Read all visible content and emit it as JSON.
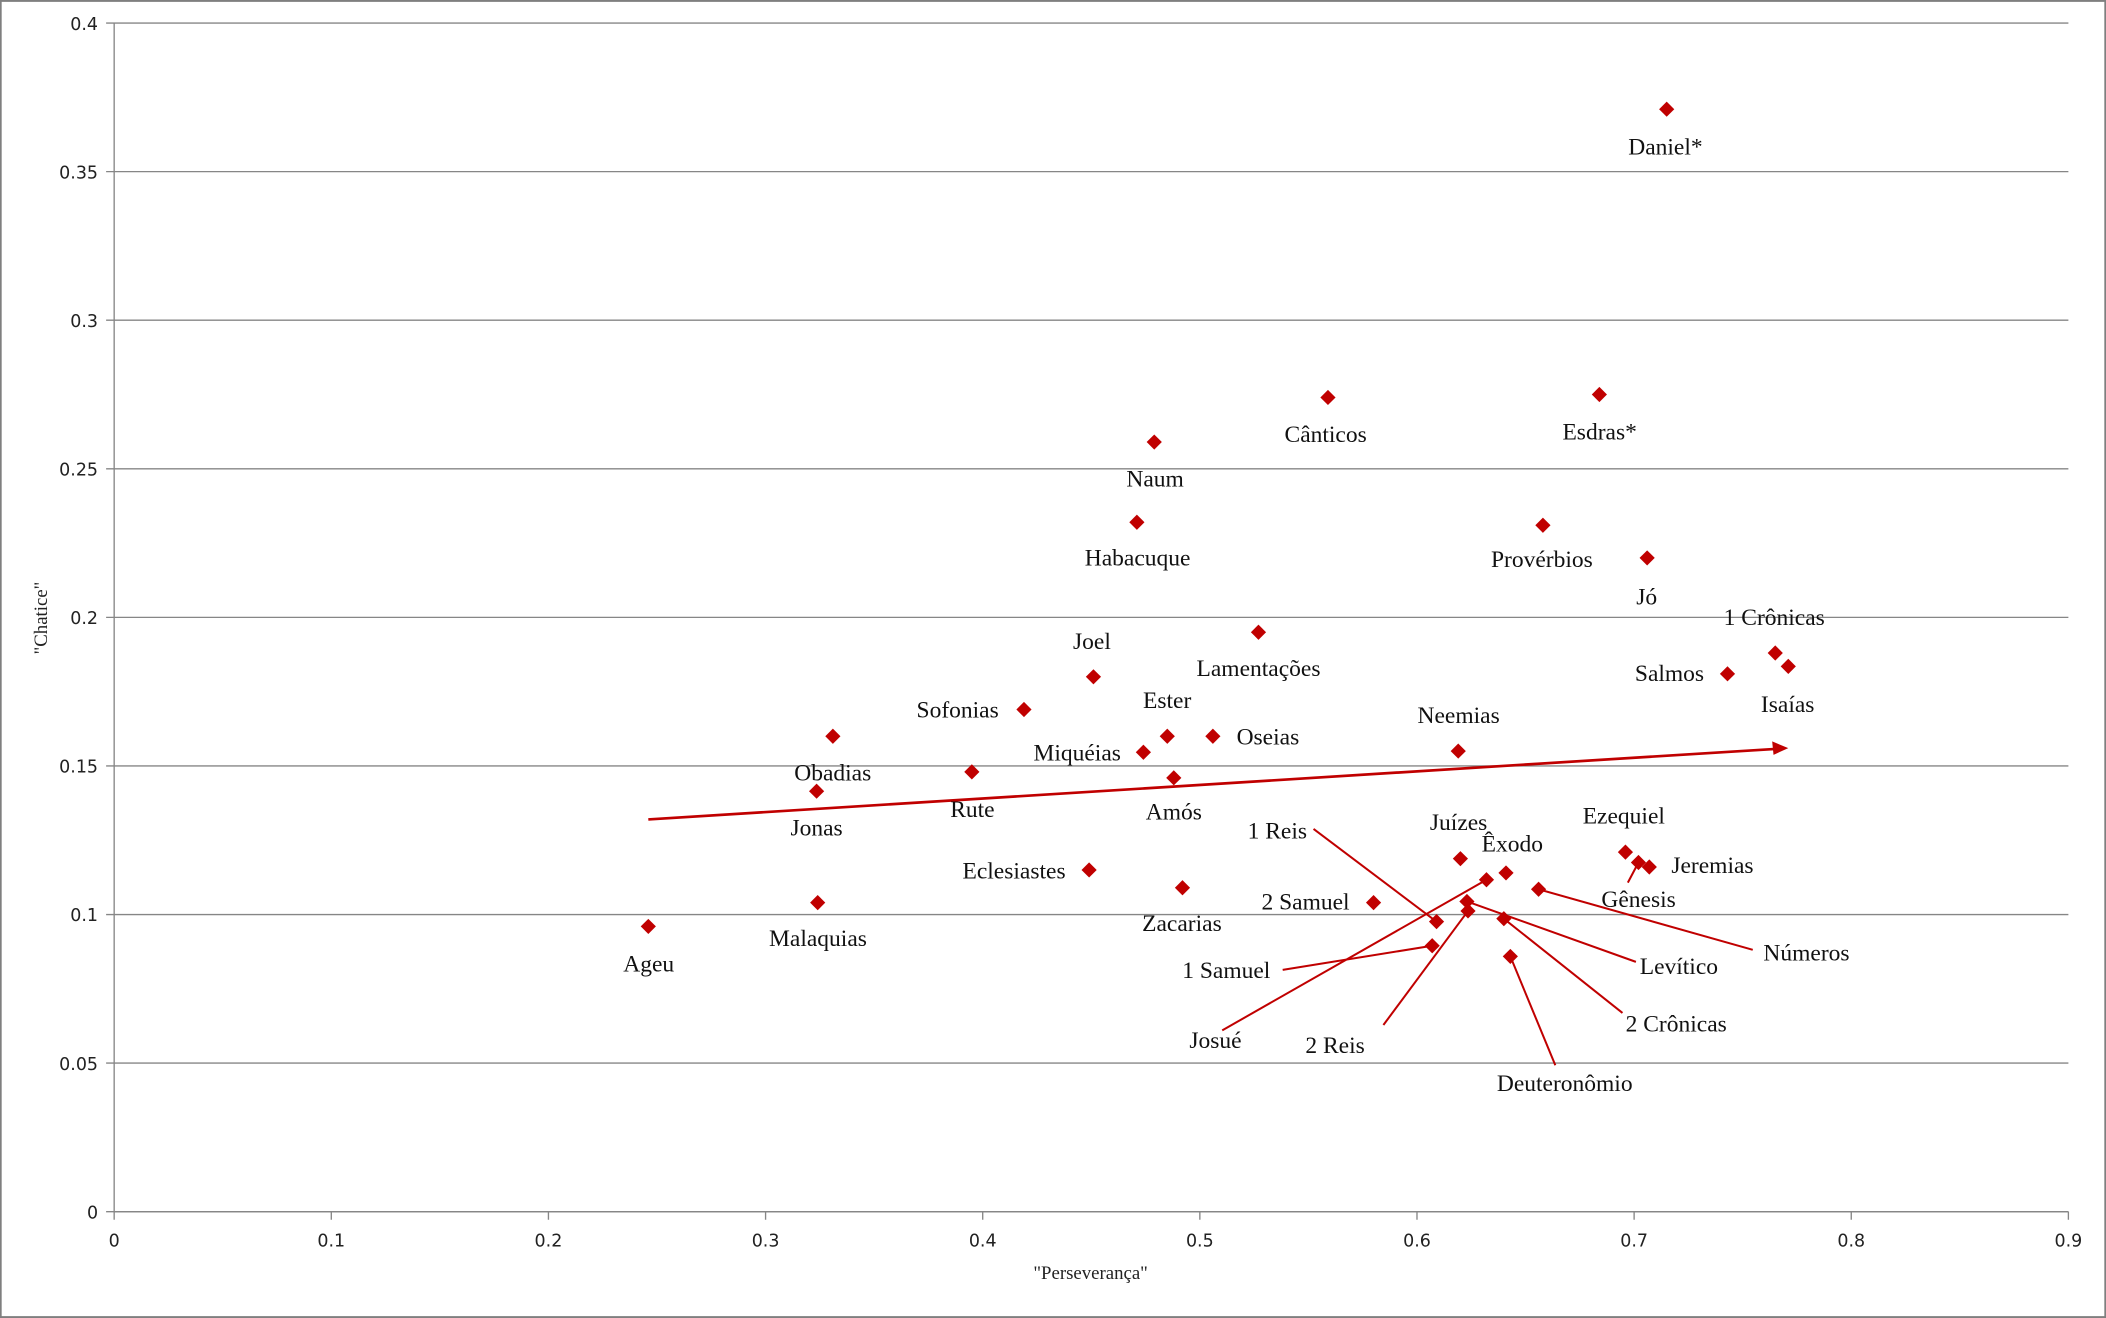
{
  "colors": {
    "marker": "#C00000",
    "grid": "#868686",
    "border": "#7f7f7f"
  },
  "chart_data": {
    "type": "scatter",
    "title": "",
    "xlabel": "\"Perseverança\"",
    "ylabel": "\"Chatice\"",
    "xlim": [
      0,
      0.9
    ],
    "ylim": [
      0,
      0.4
    ],
    "xticks": [
      "0",
      "0.1",
      "0.2",
      "0.3",
      "0.4",
      "0.5",
      "0.6",
      "0.7",
      "0.8",
      "0.9"
    ],
    "yticks": [
      "0",
      "0.05",
      "0.1",
      "0.15",
      "0.2",
      "0.25",
      "0.3",
      "0.35",
      "0.4"
    ],
    "grid": "horizontal",
    "trendline": {
      "type": "linear",
      "x": [
        0.246,
        0.771
      ],
      "y": [
        0.132,
        0.156
      ]
    },
    "points": [
      {
        "label": "Daniel*",
        "x": 0.715,
        "y": 0.371
      },
      {
        "label": "Cânticos",
        "x": 0.559,
        "y": 0.274
      },
      {
        "label": "Esdras*",
        "x": 0.684,
        "y": 0.275
      },
      {
        "label": "Naum",
        "x": 0.479,
        "y": 0.259
      },
      {
        "label": "Habacuque",
        "x": 0.471,
        "y": 0.232
      },
      {
        "label": "Provérbios",
        "x": 0.658,
        "y": 0.231
      },
      {
        "label": "Jó",
        "x": 0.706,
        "y": 0.22
      },
      {
        "label": "Lamentações",
        "x": 0.527,
        "y": 0.195
      },
      {
        "label": "Joel",
        "x": 0.451,
        "y": 0.18
      },
      {
        "label": "1 Crônicas",
        "x": 0.765,
        "y": 0.188
      },
      {
        "label": "Salmos",
        "x": 0.743,
        "y": 0.181
      },
      {
        "label": "Isaías",
        "x": 0.771,
        "y": 0.1835
      },
      {
        "label": "Sofonias",
        "x": 0.419,
        "y": 0.169
      },
      {
        "label": "Ester",
        "x": 0.485,
        "y": 0.16
      },
      {
        "label": "Oseias",
        "x": 0.506,
        "y": 0.16
      },
      {
        "label": "Obadias",
        "x": 0.331,
        "y": 0.16
      },
      {
        "label": "Miquéias",
        "x": 0.474,
        "y": 0.1546
      },
      {
        "label": "Neemias",
        "x": 0.619,
        "y": 0.155
      },
      {
        "label": "Rute",
        "x": 0.395,
        "y": 0.148
      },
      {
        "label": "Amós",
        "x": 0.488,
        "y": 0.146
      },
      {
        "label": "Jonas",
        "x": 0.3235,
        "y": 0.1415
      },
      {
        "label": "Eclesiastes",
        "x": 0.449,
        "y": 0.115
      },
      {
        "label": "Zacarias",
        "x": 0.492,
        "y": 0.109
      },
      {
        "label": "Malaquias",
        "x": 0.324,
        "y": 0.104
      },
      {
        "label": "Ageu",
        "x": 0.246,
        "y": 0.096
      },
      {
        "label": "Juízes",
        "x": 0.62,
        "y": 0.1188
      },
      {
        "label": "Êxodo",
        "x": 0.641,
        "y": 0.114
      },
      {
        "label": "Josué",
        "x": 0.632,
        "y": 0.1117
      },
      {
        "label": "Números",
        "x": 0.656,
        "y": 0.1085
      },
      {
        "label": "2 Samuel",
        "x": 0.58,
        "y": 0.104
      },
      {
        "label": "Ezequiel",
        "x": 0.696,
        "y": 0.121
      },
      {
        "label": "Gênesis",
        "x": 0.702,
        "y": 0.1175
      },
      {
        "label": "Jeremias",
        "x": 0.707,
        "y": 0.116
      },
      {
        "label": "1 Reis",
        "x": 0.609,
        "y": 0.0976
      },
      {
        "label": "Levítico",
        "x": 0.623,
        "y": 0.1044
      },
      {
        "label": "2 Reis",
        "x": 0.6235,
        "y": 0.1012
      },
      {
        "label": "2 Crônicas",
        "x": 0.64,
        "y": 0.0986
      },
      {
        "label": "Deuteronômio",
        "x": 0.643,
        "y": 0.0859
      },
      {
        "label": "1 Samuel",
        "x": 0.607,
        "y": 0.0895
      }
    ]
  }
}
